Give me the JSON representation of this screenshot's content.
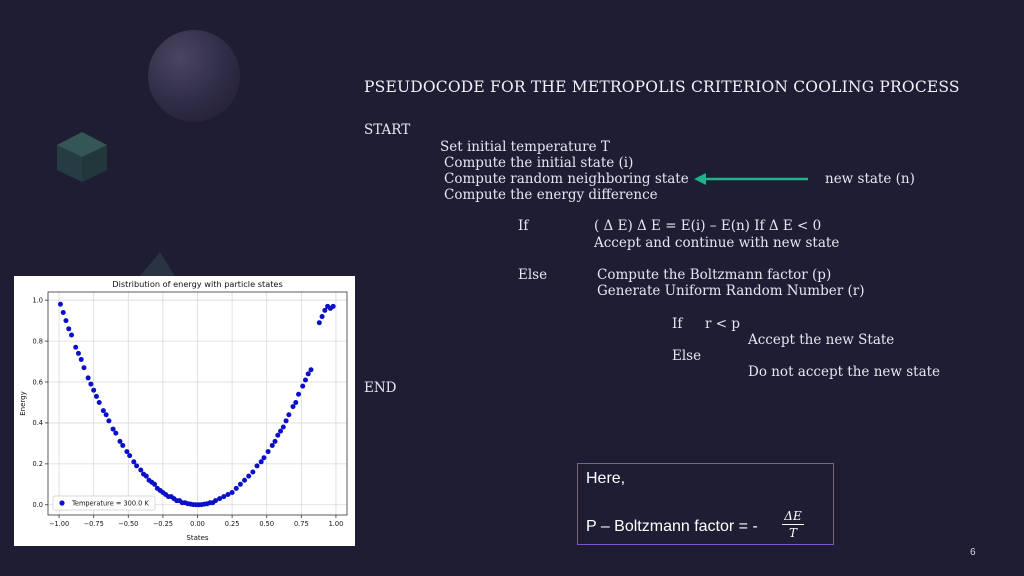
{
  "slide": {
    "title": "PSEUDOCODE FOR THE METROPOLIS CRITERION COOLING PROCESS",
    "page_number": "6"
  },
  "pseudocode": {
    "start": "START",
    "line1": "Set initial temperature T",
    "line2": "Compute the initial state (i)",
    "line3": "Compute random neighboring state",
    "line3_arrow_target": "new state (n)",
    "line4": "Compute the energy difference",
    "if_kw": "If",
    "if_cond": "( Δ E) Δ E = E(i) – E(n) If Δ E < 0",
    "if_action": "Accept and continue with new state",
    "else_kw": "Else",
    "else_line1": "Compute the Boltzmann factor (p)",
    "else_line2": "Generate Uniform Random Number (r)",
    "inner_if_kw": "If",
    "inner_if_cond": "r < p",
    "inner_if_action": "Accept the new State",
    "inner_else_kw": "Else",
    "inner_else_action": "Do not accept the new state",
    "end": "END"
  },
  "note": {
    "here": "Here,",
    "formula_text": "P – Boltzmann factor = -",
    "frac_num": "ΔE",
    "frac_den": "T"
  },
  "colors": {
    "background": "#1e1d33",
    "arrow": "#1fb28a",
    "note_border": "#7b57c8",
    "point": "#0a10c8"
  },
  "chart_data": {
    "type": "scatter",
    "title": "Distribution of energy with particle states",
    "xlabel": "States",
    "ylabel": "Energy",
    "xlim": [
      -1.08,
      1.08
    ],
    "ylim": [
      -0.05,
      1.04
    ],
    "xticks": [
      -1.0,
      -0.75,
      -0.5,
      -0.25,
      0.0,
      0.25,
      0.5,
      0.75,
      1.0
    ],
    "xtick_labels": [
      "−1.00",
      "−0.75",
      "−0.50",
      "−0.25",
      "0.00",
      "0.25",
      "0.50",
      "0.75",
      "1.00"
    ],
    "yticks": [
      0.0,
      0.2,
      0.4,
      0.6,
      0.8,
      1.0
    ],
    "ytick_labels": [
      "0.0",
      "0.2",
      "0.4",
      "0.6",
      "0.8",
      "1.0"
    ],
    "grid": true,
    "legend_position": "lower-left",
    "series": [
      {
        "name": "Temperature = 300.0 K",
        "color": "#0a10c8",
        "x": [
          -0.99,
          -0.97,
          -0.95,
          -0.93,
          -0.91,
          -0.88,
          -0.86,
          -0.84,
          -0.82,
          -0.79,
          -0.77,
          -0.75,
          -0.73,
          -0.71,
          -0.68,
          -0.66,
          -0.64,
          -0.61,
          -0.59,
          -0.56,
          -0.54,
          -0.51,
          -0.49,
          -0.46,
          -0.44,
          -0.41,
          -0.39,
          -0.37,
          -0.35,
          -0.33,
          -0.31,
          -0.29,
          -0.27,
          -0.25,
          -0.23,
          -0.21,
          -0.19,
          -0.17,
          -0.15,
          -0.13,
          -0.11,
          -0.09,
          -0.07,
          -0.05,
          -0.03,
          -0.01,
          0.01,
          0.03,
          0.05,
          0.07,
          0.09,
          0.11,
          0.13,
          0.16,
          0.19,
          0.22,
          0.25,
          0.28,
          0.31,
          0.34,
          0.37,
          0.4,
          0.43,
          0.46,
          0.48,
          0.51,
          0.54,
          0.56,
          0.58,
          0.6,
          0.62,
          0.64,
          0.66,
          0.69,
          0.71,
          0.73,
          0.76,
          0.78,
          0.8,
          0.82,
          0.88,
          0.9,
          0.92,
          0.94,
          0.96,
          0.98
        ],
        "y": [
          0.98,
          0.94,
          0.9,
          0.86,
          0.83,
          0.77,
          0.74,
          0.71,
          0.67,
          0.62,
          0.59,
          0.56,
          0.53,
          0.5,
          0.46,
          0.44,
          0.41,
          0.37,
          0.35,
          0.31,
          0.29,
          0.26,
          0.24,
          0.21,
          0.19,
          0.17,
          0.15,
          0.14,
          0.12,
          0.11,
          0.1,
          0.08,
          0.07,
          0.06,
          0.05,
          0.04,
          0.04,
          0.03,
          0.02,
          0.02,
          0.01,
          0.01,
          0.005,
          0.003,
          0.001,
          0.0,
          0.0,
          0.001,
          0.003,
          0.005,
          0.01,
          0.01,
          0.02,
          0.03,
          0.04,
          0.05,
          0.06,
          0.08,
          0.1,
          0.12,
          0.14,
          0.16,
          0.19,
          0.21,
          0.23,
          0.26,
          0.29,
          0.31,
          0.34,
          0.36,
          0.38,
          0.41,
          0.44,
          0.48,
          0.5,
          0.54,
          0.58,
          0.61,
          0.64,
          0.66,
          0.89,
          0.92,
          0.95,
          0.97,
          0.96,
          0.97
        ]
      }
    ]
  }
}
